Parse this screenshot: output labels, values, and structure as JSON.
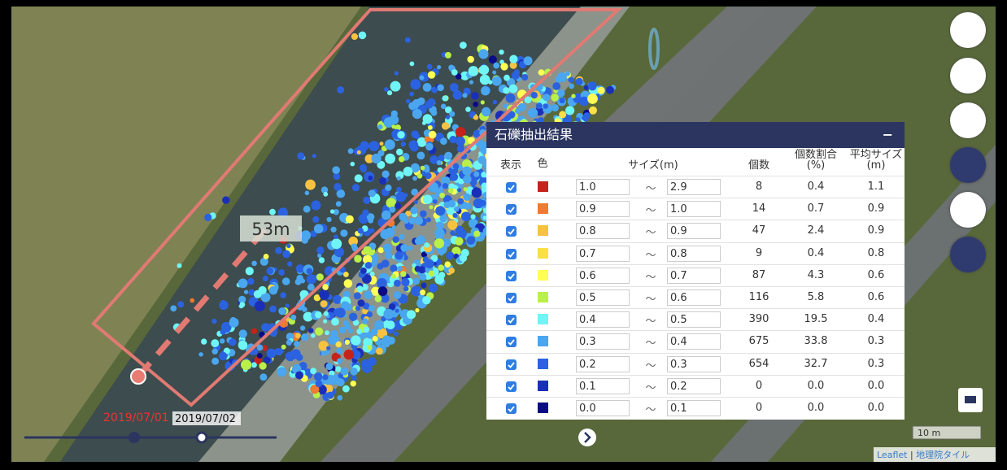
{
  "map": {
    "distance_label": "53m",
    "scale": "10 m",
    "attribution": {
      "leaflet": "Leaflet",
      "separator": "|",
      "tiles": "地理院タイル"
    }
  },
  "timeline": {
    "dates": [
      "2019/07/01",
      "2019/07/02"
    ]
  },
  "panel": {
    "title": "石礫抽出結果",
    "collapse": "−",
    "columns": {
      "show": "表示",
      "color": "色",
      "size": "サイズ(m)",
      "count": "個数",
      "ratio": [
        "個数割合",
        "(%)"
      ],
      "avg": [
        "平均サイズ",
        "(m)"
      ]
    },
    "separator": "〜",
    "rows": [
      {
        "color": "#c4231b",
        "min": "1.0",
        "max": "2.9",
        "count": "8",
        "ratio": "0.4",
        "avg": "1.1"
      },
      {
        "color": "#f07a2e",
        "min": "0.9",
        "max": "1.0",
        "count": "14",
        "ratio": "0.7",
        "avg": "0.9"
      },
      {
        "color": "#f6c240",
        "min": "0.8",
        "max": "0.9",
        "count": "47",
        "ratio": "2.4",
        "avg": "0.9"
      },
      {
        "color": "#f9df48",
        "min": "0.7",
        "max": "0.8",
        "count": "9",
        "ratio": "0.4",
        "avg": "0.8"
      },
      {
        "color": "#ffff55",
        "min": "0.6",
        "max": "0.7",
        "count": "87",
        "ratio": "4.3",
        "avg": "0.6"
      },
      {
        "color": "#b9f04a",
        "min": "0.5",
        "max": "0.6",
        "count": "116",
        "ratio": "5.8",
        "avg": "0.6"
      },
      {
        "color": "#6ff5f5",
        "min": "0.4",
        "max": "0.5",
        "count": "390",
        "ratio": "19.5",
        "avg": "0.4"
      },
      {
        "color": "#4aa6ee",
        "min": "0.3",
        "max": "0.4",
        "count": "675",
        "ratio": "33.8",
        "avg": "0.3"
      },
      {
        "color": "#2b62e0",
        "min": "0.2",
        "max": "0.3",
        "count": "654",
        "ratio": "32.7",
        "avg": "0.3"
      },
      {
        "color": "#1a2fb8",
        "min": "0.1",
        "max": "0.2",
        "count": "0",
        "ratio": "0.0",
        "avg": "0.0"
      },
      {
        "color": "#0b0b85",
        "min": "0.0",
        "max": "0.1",
        "count": "0",
        "ratio": "0.0",
        "avg": "0.0"
      }
    ]
  }
}
